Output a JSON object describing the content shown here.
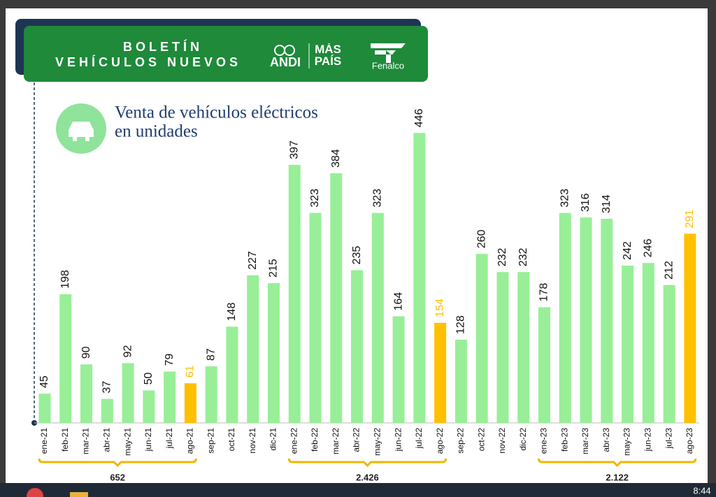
{
  "header": {
    "title_line1": "BOLETÍN",
    "title_line2": "VEHÍCULOS NUEVOS",
    "logo1": "ANDI",
    "logo2": "MÁS PAÍS",
    "logo3": "Fenalco"
  },
  "chart_data": {
    "type": "bar",
    "title_line1": "Venta de vehículos eléctricos",
    "title_line2": "en unidades",
    "categories": [
      "ene-21",
      "feb-21",
      "mar-21",
      "abr-21",
      "may-21",
      "jun-21",
      "jul-21",
      "ago-21",
      "sep-21",
      "oct-21",
      "nov-21",
      "dic-21",
      "ene-22",
      "feb-22",
      "mar-22",
      "abr-22",
      "may-22",
      "jun-22",
      "jul-22",
      "ago-22",
      "sep-22",
      "oct-22",
      "nov-22",
      "dic-22",
      "ene-23",
      "feb-23",
      "mar-23",
      "abr-23",
      "may-23",
      "jun-23",
      "jul-23",
      "ago-23"
    ],
    "values": [
      45,
      198,
      90,
      37,
      92,
      50,
      79,
      61,
      87,
      148,
      227,
      215,
      397,
      323,
      384,
      235,
      323,
      164,
      446,
      154,
      128,
      260,
      232,
      232,
      178,
      323,
      316,
      314,
      242,
      246,
      212,
      291
    ],
    "colors": [
      "#98ef98",
      "#98ef98",
      "#98ef98",
      "#98ef98",
      "#98ef98",
      "#98ef98",
      "#98ef98",
      "#ffc000",
      "#98ef98",
      "#98ef98",
      "#98ef98",
      "#98ef98",
      "#98ef98",
      "#98ef98",
      "#98ef98",
      "#98ef98",
      "#98ef98",
      "#98ef98",
      "#98ef98",
      "#ffc000",
      "#98ef98",
      "#98ef98",
      "#98ef98",
      "#98ef98",
      "#98ef98",
      "#98ef98",
      "#98ef98",
      "#98ef98",
      "#98ef98",
      "#98ef98",
      "#98ef98",
      "#ffc000"
    ],
    "period_totals": [
      652,
      {
        "value": 2426,
        "label": "2.426"
      },
      {
        "value": 2122,
        "label": "2.122"
      }
    ]
  },
  "taskbar": {
    "time": "8:44"
  }
}
